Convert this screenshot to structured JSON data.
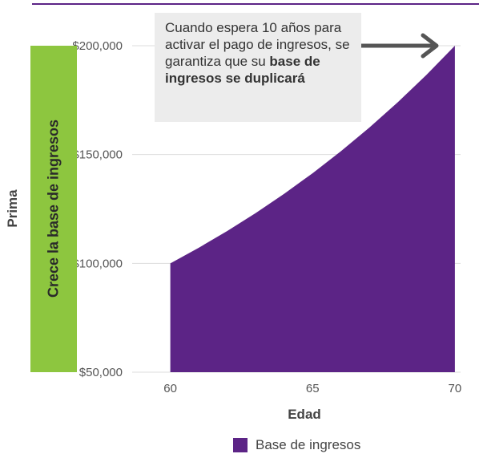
{
  "chart_data": {
    "type": "area",
    "x": [
      60,
      61,
      62,
      63,
      64,
      65,
      66,
      67,
      68,
      69,
      70
    ],
    "series": [
      {
        "name": "Base de ingresos",
        "values": [
          100000,
          107177,
          114870,
          123114,
          131951,
          141421,
          151572,
          162450,
          174110,
          186607,
          200000
        ]
      }
    ],
    "xlabel": "Edad",
    "ylabel": "Prima",
    "xticks": [
      "60",
      "65",
      "70"
    ],
    "yticks": [
      "$50,000",
      "$100,000",
      "$150,000",
      "$200,000"
    ],
    "ytick_values": [
      50000,
      100000,
      150000,
      200000
    ],
    "xtick_values": [
      60,
      65,
      70
    ],
    "xlim": [
      58.8,
      70.2
    ],
    "ylim": [
      50000,
      200000
    ],
    "grid": true,
    "legend": "bottom",
    "colors": {
      "series": "#5c2486",
      "accent_bar": "#8dc63f",
      "top_rule": "#5c2486",
      "grid": "#dddddd",
      "arrow": "#555555",
      "callout_bg": "#ececec"
    }
  },
  "side_label": "Crece la base de ingresos",
  "callout": {
    "text_plain": "Cuando espera 10 años para activar el pago de ingresos, se garantiza que su ",
    "text_bold": "base de ingresos se duplicará"
  }
}
